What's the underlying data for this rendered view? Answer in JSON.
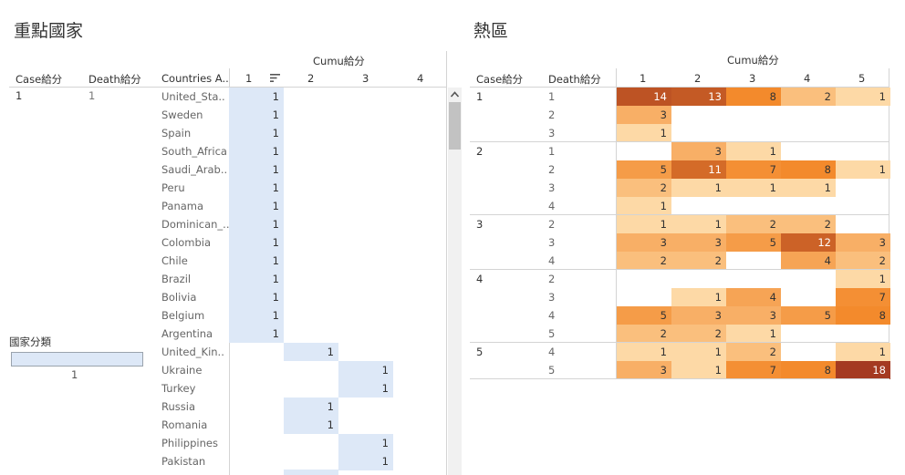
{
  "left": {
    "title": "重點國家",
    "cumu_header": "Cumu給分",
    "col_headers": {
      "case": "Case給分",
      "death": "Death給分",
      "country": "Countries A.."
    },
    "cumu_cols": [
      "1",
      "2",
      "3",
      "4"
    ],
    "case_value": "1",
    "death_value": "1",
    "rows": [
      {
        "country": "United_Sta..",
        "col": 1,
        "value": "1"
      },
      {
        "country": "Sweden",
        "col": 1,
        "value": "1"
      },
      {
        "country": "Spain",
        "col": 1,
        "value": "1"
      },
      {
        "country": "South_Africa",
        "col": 1,
        "value": "1"
      },
      {
        "country": "Saudi_Arab..",
        "col": 1,
        "value": "1"
      },
      {
        "country": "Peru",
        "col": 1,
        "value": "1"
      },
      {
        "country": "Panama",
        "col": 1,
        "value": "1"
      },
      {
        "country": "Dominican_..",
        "col": 1,
        "value": "1"
      },
      {
        "country": "Colombia",
        "col": 1,
        "value": "1"
      },
      {
        "country": "Chile",
        "col": 1,
        "value": "1"
      },
      {
        "country": "Brazil",
        "col": 1,
        "value": "1"
      },
      {
        "country": "Bolivia",
        "col": 1,
        "value": "1"
      },
      {
        "country": "Belgium",
        "col": 1,
        "value": "1"
      },
      {
        "country": "Argentina",
        "col": 1,
        "value": "1"
      },
      {
        "country": "United_Kin..",
        "col": 2,
        "value": "1"
      },
      {
        "country": "Ukraine",
        "col": 3,
        "value": "1"
      },
      {
        "country": "Turkey",
        "col": 3,
        "value": "1"
      },
      {
        "country": "Russia",
        "col": 2,
        "value": "1"
      },
      {
        "country": "Romania",
        "col": 2,
        "value": "1"
      },
      {
        "country": "Philippines",
        "col": 3,
        "value": "1"
      },
      {
        "country": "Pakistan",
        "col": 3,
        "value": "1"
      }
    ],
    "legend": {
      "title": "國家分類",
      "value": "1"
    }
  },
  "right": {
    "title": "熱區",
    "cumu_header": "Cumu給分",
    "col_headers": {
      "case": "Case給分",
      "death": "Death給分"
    },
    "cumu_cols": [
      "1",
      "2",
      "3",
      "4",
      "5"
    ],
    "groups": [
      {
        "case": "1",
        "rows": [
          {
            "death": "1",
            "values": [
              14,
              13,
              8,
              2,
              1
            ]
          },
          {
            "death": "2",
            "values": [
              3,
              null,
              null,
              null,
              null
            ]
          },
          {
            "death": "3",
            "values": [
              1,
              null,
              null,
              null,
              null
            ]
          }
        ]
      },
      {
        "case": "2",
        "rows": [
          {
            "death": "1",
            "values": [
              null,
              3,
              1,
              null,
              null
            ]
          },
          {
            "death": "2",
            "values": [
              5,
              11,
              7,
              8,
              1
            ]
          },
          {
            "death": "3",
            "values": [
              2,
              1,
              1,
              1,
              null
            ]
          },
          {
            "death": "4",
            "values": [
              1,
              null,
              null,
              null,
              null
            ]
          }
        ]
      },
      {
        "case": "3",
        "rows": [
          {
            "death": "2",
            "values": [
              1,
              1,
              2,
              2,
              null
            ]
          },
          {
            "death": "3",
            "values": [
              3,
              3,
              5,
              12,
              3
            ]
          },
          {
            "death": "4",
            "values": [
              2,
              2,
              null,
              4,
              2
            ]
          }
        ]
      },
      {
        "case": "4",
        "rows": [
          {
            "death": "2",
            "values": [
              null,
              null,
              null,
              null,
              1
            ]
          },
          {
            "death": "3",
            "values": [
              null,
              1,
              4,
              null,
              7
            ]
          },
          {
            "death": "4",
            "values": [
              5,
              3,
              3,
              5,
              8
            ]
          },
          {
            "death": "5",
            "values": [
              2,
              2,
              1,
              null,
              null
            ]
          }
        ]
      },
      {
        "case": "5",
        "rows": [
          {
            "death": "4",
            "values": [
              1,
              1,
              2,
              null,
              1
            ]
          },
          {
            "death": "5",
            "values": [
              3,
              1,
              7,
              8,
              18
            ]
          }
        ]
      }
    ]
  },
  "colors": {
    "highlight": "#dde8f7",
    "heat_low": "#fdd9a6",
    "heat_mid": "#f38a2c",
    "heat_high": "#a43a21"
  }
}
